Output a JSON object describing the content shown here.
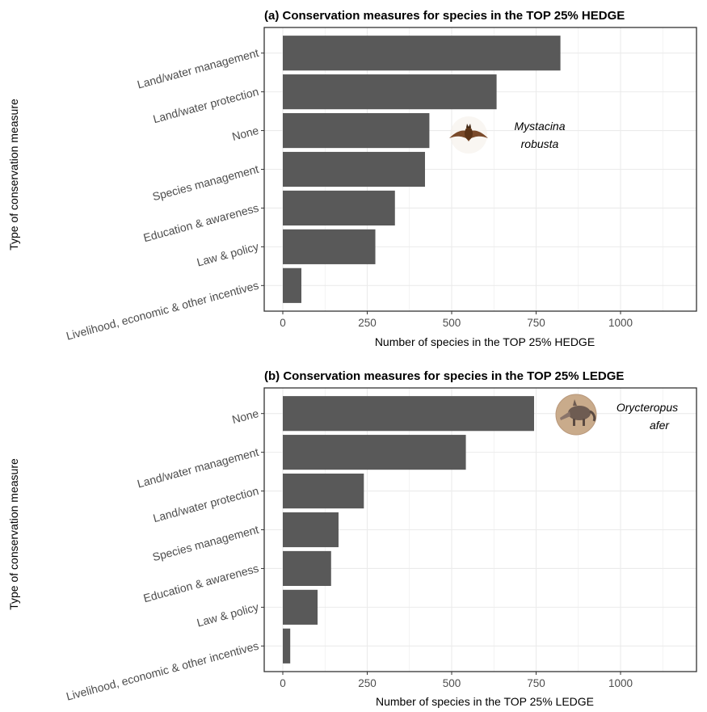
{
  "panels": [
    {
      "title": "(a) Conservation measures for species in the TOP 25% HEDGE",
      "xlabel": "Number of species in the TOP 25% HEDGE",
      "ylabel": "Type of conservation measure",
      "species_line1": "Mystacina",
      "species_line2": "robusta",
      "species_icon": "bat-icon"
    },
    {
      "title": "(b) Conservation measures for species in the TOP 25% LEDGE",
      "xlabel": "Number of species in the TOP 25% LEDGE",
      "ylabel": "Type of conservation measure",
      "species_line1": "Orycteropus",
      "species_line2": "afer",
      "species_icon": "aardvark-icon"
    }
  ],
  "chart_data": [
    {
      "type": "bar",
      "orientation": "horizontal",
      "title": "(a) Conservation measures for species in the TOP 25% HEDGE",
      "xlabel": "Number of species in the TOP 25% HEDGE",
      "ylabel": "Type of conservation measure",
      "categories": [
        "Land/water management",
        "Land/water protection",
        "None",
        "Species management",
        "Education & awareness",
        "Law & policy",
        "Livelihood, economic & other incentives"
      ],
      "values": [
        822,
        633,
        434,
        421,
        332,
        274,
        55
      ],
      "xlim": [
        0,
        1250
      ],
      "xticks": [
        0,
        250,
        500,
        750,
        1000
      ],
      "grid": true,
      "bar_color": "#595959"
    },
    {
      "type": "bar",
      "orientation": "horizontal",
      "title": "(b) Conservation measures for species in the TOP 25% LEDGE",
      "xlabel": "Number of species in the TOP 25% LEDGE",
      "ylabel": "Type of conservation measure",
      "categories": [
        "None",
        "Land/water management",
        "Land/water protection",
        "Species management",
        "Education & awareness",
        "Law & policy",
        "Livelihood, economic & other incentives"
      ],
      "values": [
        744,
        542,
        240,
        165,
        143,
        103,
        22
      ],
      "xlim": [
        0,
        1250
      ],
      "xticks": [
        0,
        250,
        500,
        750,
        1000
      ],
      "grid": true,
      "bar_color": "#595959"
    }
  ]
}
